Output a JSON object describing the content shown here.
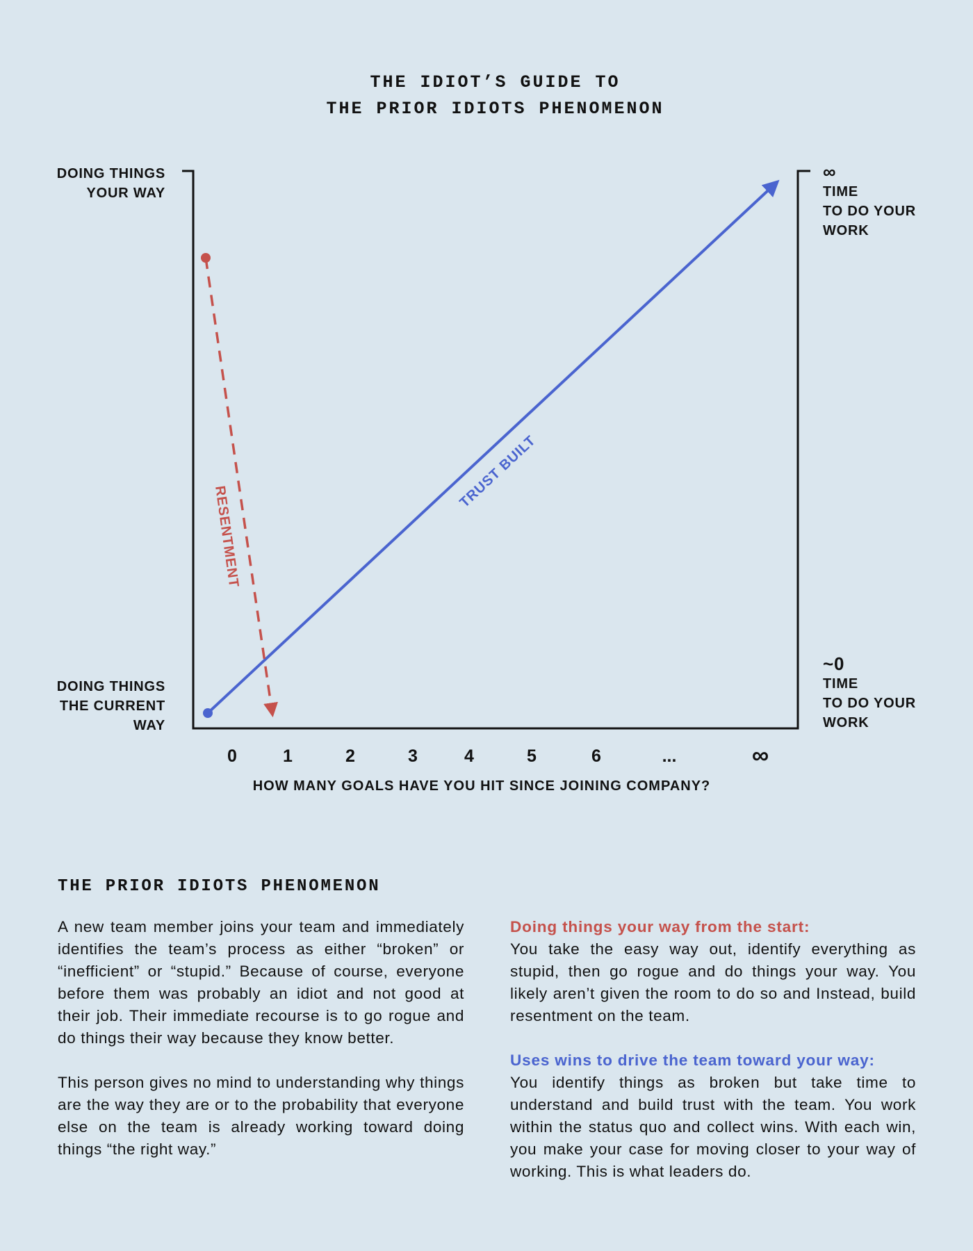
{
  "title": {
    "line1": "THE IDIOT’S GUIDE TO",
    "line2": "THE PRIOR IDIOTS PHENOMENON"
  },
  "diagram": {
    "left_axis": {
      "top_label": [
        "DOING THINGS",
        "YOUR WAY"
      ],
      "bottom_label": [
        "DOING THINGS",
        "THE CURRENT",
        "WAY"
      ]
    },
    "right_axis": {
      "top_symbol": "∞",
      "top_label": [
        "TIME",
        "TO DO YOUR",
        "WORK"
      ],
      "bottom_symbol": "~0",
      "bottom_label": [
        "TIME",
        "TO DO YOUR",
        "WORK"
      ]
    },
    "x_axis": {
      "title": "HOW MANY GOALS HAVE YOU HIT SINCE JOINING COMPANY?",
      "ticks": [
        "0",
        "1",
        "2",
        "3",
        "4",
        "5",
        "6",
        "...",
        "∞"
      ]
    },
    "lines": {
      "resentment": {
        "label": "RESENTMENT",
        "color": "#c5514b"
      },
      "trust": {
        "label": "TRUST BUILT",
        "color": "#4a64cf"
      }
    }
  },
  "section": {
    "heading": "THE PRIOR IDIOTS PHENOMENON",
    "left_paragraphs": [
      "A new team member joins your team and immediately identifies the team’s process as either “broken” or “inefficient” or “stupid.” Because of course, everyone before them was probably an idiot and not good at their job. Their immediate recourse is to go rogue and do things their way because they know better.",
      "This person gives no mind to understanding why things are the way they are or to the probability that everyone else on the team is already working toward doing things “the right way.”"
    ],
    "right_blocks": [
      {
        "lead": "Doing things your way from the start:",
        "body": "You take the easy way out, identify everything as stupid, then go rogue and do things your way. You likely aren’t given the room to do so and Instead, build resentment on the team."
      },
      {
        "lead": "Uses wins to drive the team toward your way:",
        "body": "You identify things as broken but take time to understand and build trust with the team. You work within the status quo and collect wins. With each win, you make your case for moving closer to your way of working. This is what leaders do."
      }
    ]
  }
}
